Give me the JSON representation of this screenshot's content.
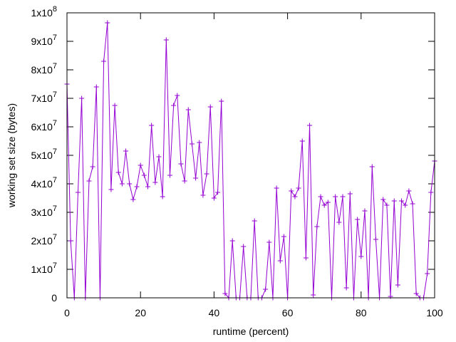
{
  "chart_data": {
    "type": "line",
    "title": "",
    "xlabel": "runtime (percent)",
    "ylabel": "working set size (bytes)",
    "xlim": [
      0,
      100
    ],
    "ylim": [
      0,
      100000000
    ],
    "grid": false,
    "legend": "none",
    "series_color": "#9400D3",
    "x_ticks": [
      {
        "value": 0,
        "label": "0"
      },
      {
        "value": 20,
        "label": "20"
      },
      {
        "value": 40,
        "label": "40"
      },
      {
        "value": 60,
        "label": "60"
      },
      {
        "value": 80,
        "label": "80"
      },
      {
        "value": 100,
        "label": "100"
      }
    ],
    "y_ticks": [
      {
        "value": 0,
        "mant": "0",
        "exp": ""
      },
      {
        "value": 10000000,
        "mant": "1x10",
        "exp": "7"
      },
      {
        "value": 20000000,
        "mant": "2x10",
        "exp": "7"
      },
      {
        "value": 30000000,
        "mant": "3x10",
        "exp": "7"
      },
      {
        "value": 40000000,
        "mant": "4x10",
        "exp": "7"
      },
      {
        "value": 50000000,
        "mant": "5x10",
        "exp": "7"
      },
      {
        "value": 60000000,
        "mant": "6x10",
        "exp": "7"
      },
      {
        "value": 70000000,
        "mant": "7x10",
        "exp": "7"
      },
      {
        "value": 80000000,
        "mant": "8x10",
        "exp": "7"
      },
      {
        "value": 90000000,
        "mant": "9x10",
        "exp": "7"
      },
      {
        "value": 100000000,
        "mant": "1x10",
        "exp": "8"
      }
    ],
    "series": [
      {
        "x": [
          0,
          1,
          2,
          3,
          4,
          5,
          6,
          7,
          8,
          9,
          10,
          11,
          12,
          13,
          14,
          15,
          16,
          17,
          18,
          19,
          20,
          21,
          22,
          23,
          24,
          25,
          26,
          27,
          28,
          29,
          30,
          31,
          32,
          33,
          34,
          35,
          36,
          37,
          38,
          39,
          40,
          41,
          42,
          43,
          44,
          45,
          46,
          47,
          48,
          49,
          50,
          51,
          52,
          53,
          54,
          55,
          56,
          57,
          58,
          59,
          60,
          61,
          62,
          63,
          64,
          65,
          66,
          67,
          68,
          69,
          70,
          71,
          72,
          73,
          74,
          75,
          76,
          77,
          78,
          79,
          80,
          81,
          82,
          83,
          84,
          85,
          86,
          87,
          88,
          89,
          90,
          91,
          92,
          93,
          94,
          95,
          96,
          97,
          98,
          99,
          100
        ],
        "y": [
          75000000,
          20000000,
          0,
          37000000,
          70000000,
          0,
          41000000,
          46000000,
          74000000,
          0,
          83000000,
          96500000,
          38000000,
          67500000,
          44000000,
          40000000,
          51500000,
          40000000,
          34500000,
          39000000,
          46500000,
          43000000,
          39000000,
          60500000,
          40500000,
          49500000,
          35500000,
          90500000,
          43000000,
          67500000,
          71000000,
          47000000,
          41000000,
          66000000,
          54000000,
          42000000,
          54500000,
          36000000,
          43500000,
          67000000,
          35000000,
          37000000,
          69000000,
          1500000,
          0,
          20000000,
          0,
          0,
          18000000,
          0,
          0,
          27000000,
          0,
          0,
          3000000,
          19500000,
          0,
          38500000,
          13000000,
          21500000,
          0,
          37500000,
          35500000,
          38500000,
          55000000,
          14000000,
          60500000,
          1000000,
          25000000,
          35500000,
          32500000,
          33500000,
          0,
          35500000,
          26500000,
          35500000,
          3500000,
          36500000,
          0,
          27500000,
          14500000,
          30500000,
          0,
          46000000,
          20500000,
          0,
          34500000,
          32500000,
          500000,
          34000000,
          4500000,
          34000000,
          32500000,
          37500000,
          33000000,
          1500000,
          0,
          0,
          8500000,
          37000000,
          48000000
        ]
      }
    ]
  }
}
